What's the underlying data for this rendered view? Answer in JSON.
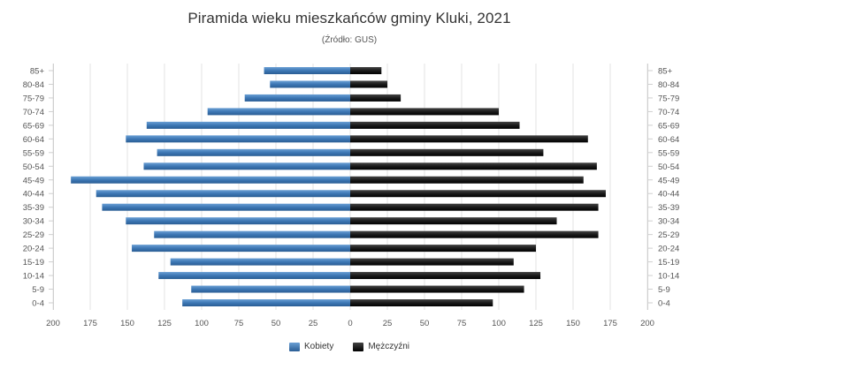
{
  "chart_data": {
    "type": "bar",
    "orientation": "horizontal",
    "title": "Piramida wieku mieszkańców gminy Kluki, 2021",
    "subtitle": "(Źródło: GUS)",
    "categories": [
      "85+",
      "80-84",
      "75-79",
      "70-74",
      "65-69",
      "60-64",
      "55-59",
      "50-54",
      "45-49",
      "40-44",
      "35-39",
      "30-34",
      "25-29",
      "20-24",
      "15-19",
      "10-14",
      "5-9",
      "0-4"
    ],
    "series": [
      {
        "name": "Kobiety",
        "color": "#3d77b4",
        "values": [
          58,
          54,
          71,
          96,
          137,
          151,
          130,
          139,
          188,
          171,
          167,
          151,
          132,
          147,
          121,
          129,
          107,
          113
        ]
      },
      {
        "name": "Mężczyźni",
        "color": "#1a1a1a",
        "values": [
          21,
          25,
          34,
          100,
          114,
          160,
          130,
          166,
          157,
          172,
          167,
          139,
          167,
          125,
          110,
          128,
          117,
          96
        ]
      }
    ],
    "xlim": [
      -200,
      200
    ],
    "x_ticks": [
      200,
      175,
      150,
      125,
      100,
      75,
      50,
      25,
      0,
      25,
      50,
      75,
      100,
      125,
      150,
      175,
      200
    ],
    "grid": true,
    "legend_position": "bottom"
  }
}
